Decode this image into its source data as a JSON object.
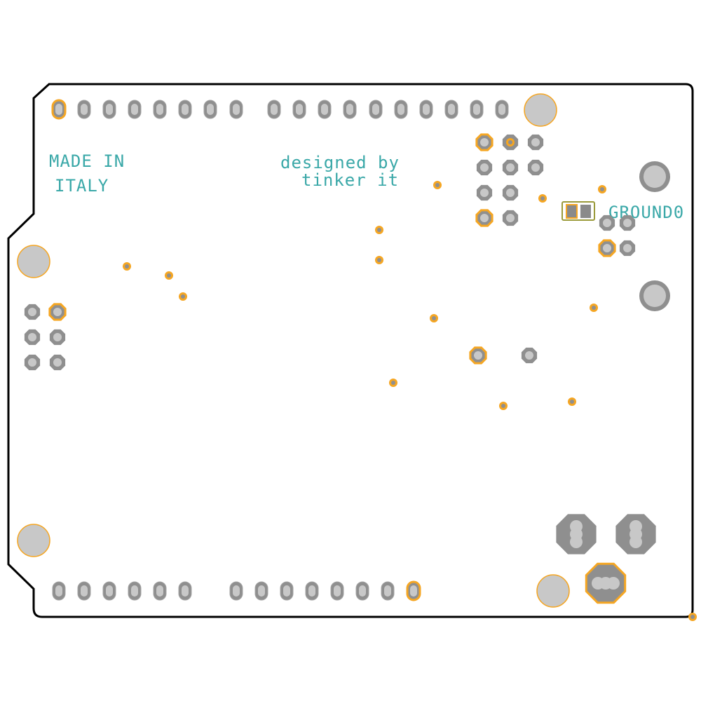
{
  "labels": {
    "made_in": "MADE IN",
    "italy": "ITALY",
    "designed_by": "designed by",
    "tinker_it": "tinker it",
    "ground": "GROUND0"
  }
}
